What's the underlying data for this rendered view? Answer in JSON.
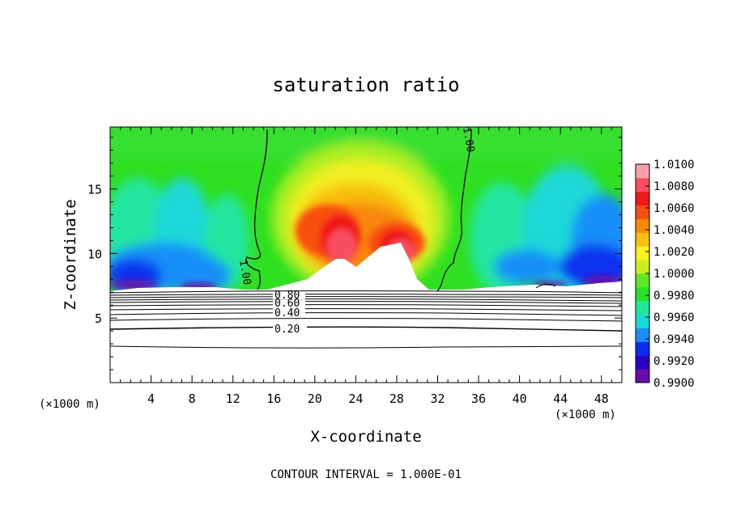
{
  "chart_data": {
    "type": "heatmap",
    "title": "saturation ratio",
    "xlabel": "X-coordinate",
    "ylabel": "Z-coordinate",
    "x_unit_left": "(×1000 m)",
    "x_unit_right": "(×1000 m)",
    "footer": "CONTOUR INTERVAL = 1.000E-01",
    "xlim": [
      0,
      50
    ],
    "ylim": [
      0,
      19.8
    ],
    "x_ticks": [
      4,
      8,
      12,
      16,
      20,
      24,
      28,
      32,
      36,
      40,
      44,
      48
    ],
    "y_ticks": [
      5,
      10,
      15
    ],
    "colorbar": {
      "min": 0.99,
      "max": 1.01,
      "labels": [
        "1.0100",
        "1.0080",
        "1.0060",
        "1.0040",
        "1.0020",
        "1.0000",
        "0.9980",
        "0.9960",
        "0.9940",
        "0.9920",
        "0.9900"
      ],
      "colors": [
        "#6a0aa8",
        "#2a00c8",
        "#0a2ef0",
        "#1a8ef8",
        "#18d8d8",
        "#20e898",
        "#28e028",
        "#60e828",
        "#c8f020",
        "#f8f020",
        "#f8c010",
        "#f88808",
        "#f85010",
        "#f01818",
        "#f85060",
        "#f8a0a8"
      ]
    },
    "contour_labels": [
      {
        "text": "1.00",
        "x": 14.8,
        "z": 9.6
      },
      {
        "text": "1.00",
        "x": 34.8,
        "z": 18.6
      },
      {
        "text": "0.80",
        "x": 17.5,
        "z": 6.85
      },
      {
        "text": "0.60",
        "x": 17.5,
        "z": 6.3
      },
      {
        "text": "0.40",
        "x": 17.5,
        "z": 5.55
      },
      {
        "text": "0.20",
        "x": 17.5,
        "z": 4.1
      }
    ],
    "features": {
      "cloud_free_region": "white area above ~7 km from x≈15 to x≈31",
      "ridge_peaks": [
        {
          "x": 22.5,
          "z": 12.5
        },
        {
          "x": 28.5,
          "z": 11.5
        }
      ]
    }
  }
}
